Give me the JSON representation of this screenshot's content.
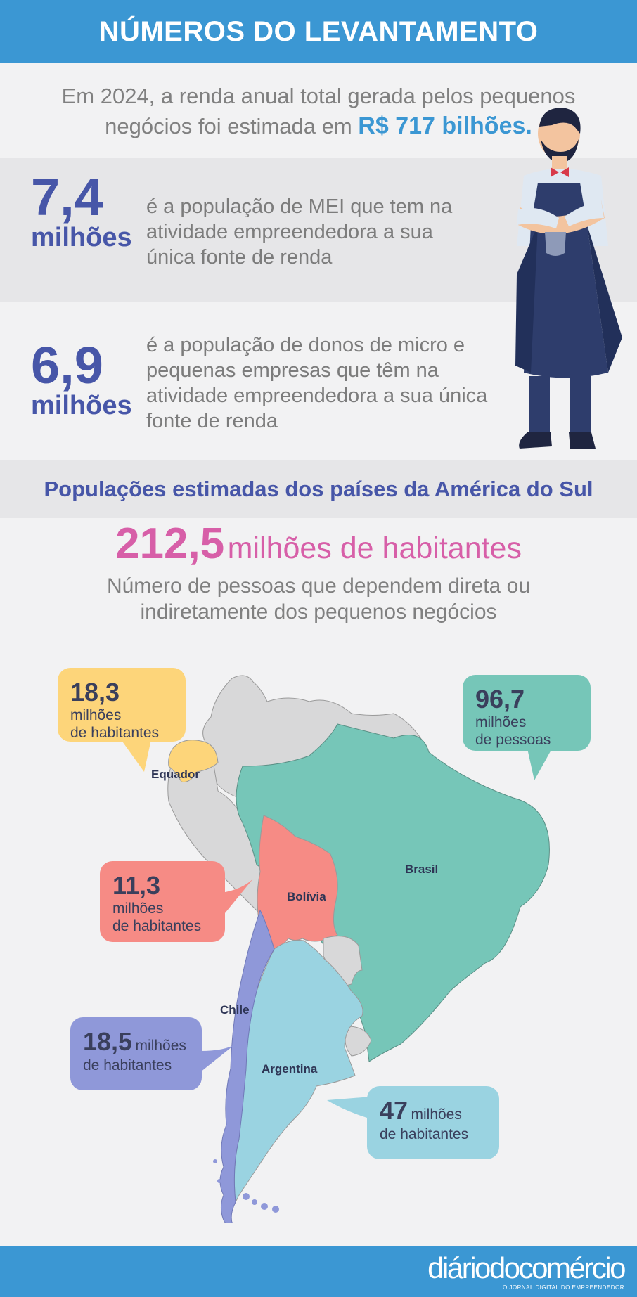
{
  "header": {
    "title": "NÚMEROS DO LEVANTAMENTO"
  },
  "intro": {
    "text": "Em 2024, a renda anual total gerada pelos pequenos negócios foi estimada em",
    "highlight": "R$ 717 bilhões."
  },
  "stats": [
    {
      "value": "7,4",
      "unit": "milhões",
      "description": "é a população de MEI que tem na atividade empreendedora a sua única fonte de renda"
    },
    {
      "value": "6,9",
      "unit": "milhões",
      "description": "é a população de donos de micro e pequenas empresas que têm na atividade empreendedora a sua única fonte de renda"
    }
  ],
  "section": {
    "title": "Populações estimadas dos países da América do Sul"
  },
  "total": {
    "value": "212,5",
    "label": "milhões de habitantes",
    "description": "Número de pessoas que dependem direta ou indiretamente dos pequenos negócios"
  },
  "countries": {
    "equador": {
      "name": "Equador",
      "value": "18,3",
      "unit": "milhões",
      "unit2": "de habitantes",
      "color": "#fdd57a"
    },
    "brasil": {
      "name": "Brasil",
      "value": "96,7",
      "unit": "milhões",
      "unit2": "de pessoas",
      "color": "#76c6b8"
    },
    "bolivia": {
      "name": "Bolívia",
      "value": "11,3",
      "unit": "milhões",
      "unit2": "de habitantes",
      "color": "#f68b85"
    },
    "chile": {
      "name": "Chile",
      "value": "18,5",
      "unit": "milhões",
      "unit2": "de habitantes",
      "color": "#8f98d9"
    },
    "argentina": {
      "name": "Argentina",
      "value": "47",
      "unit": "milhões",
      "unit2": "de habitantes",
      "color": "#9ad3e1"
    }
  },
  "footer": {
    "brand": "diáriodocomércio",
    "tagline": "O JORNAL DIGITAL DO EMPREENDEDOR"
  }
}
